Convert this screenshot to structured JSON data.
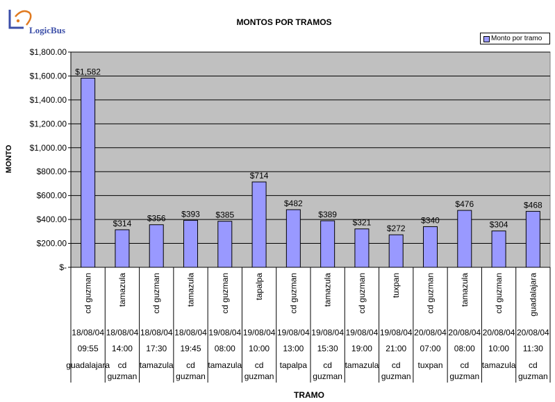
{
  "brand": {
    "name": "LogicBus"
  },
  "colors": {
    "bar": "#9999ff",
    "plot_bg": "#c0c0c0",
    "grid": "#000000",
    "logo": "#3b4ea8"
  },
  "chart_data": {
    "type": "bar",
    "title": "MONTOS POR TRAMOS",
    "xlabel": "TRAMO",
    "ylabel": "MONTO",
    "ylim": [
      0,
      1800
    ],
    "yticks": [
      0,
      200,
      400,
      600,
      800,
      1000,
      1200,
      1400,
      1600,
      1800
    ],
    "ytick_labels": [
      "$-",
      "$200.00",
      "$400.00",
      "$600.00",
      "$800.00",
      "$1,000.00",
      "$1,200.00",
      "$1,400.00",
      "$1,600.00",
      "$1,800.00"
    ],
    "grid": true,
    "legend": "top-right",
    "series": [
      {
        "name": "Monto por tramo",
        "values": [
          1582,
          314,
          356,
          393,
          385,
          714,
          482,
          389,
          321,
          272,
          340,
          476,
          304,
          468
        ],
        "data_labels": [
          "$1,582",
          "$314",
          "$356",
          "$393",
          "$385",
          "$714",
          "$482",
          "$389",
          "$321",
          "$272",
          "$340",
          "$476",
          "$304",
          "$468"
        ]
      }
    ],
    "categories": [
      {
        "origin": "cd guzman",
        "date": "18/08/04",
        "time": "09:55",
        "dest": [
          "guadalajara"
        ]
      },
      {
        "origin": "tamazula",
        "date": "18/08/04",
        "time": "14:00",
        "dest": [
          "cd",
          "guzman"
        ]
      },
      {
        "origin": "cd guzman",
        "date": "18/08/04",
        "time": "17:30",
        "dest": [
          "tamazula"
        ]
      },
      {
        "origin": "tamazula",
        "date": "18/08/04",
        "time": "19:45",
        "dest": [
          "cd",
          "guzman"
        ]
      },
      {
        "origin": "cd guzman",
        "date": "19/08/04",
        "time": "08:00",
        "dest": [
          "tamazula"
        ]
      },
      {
        "origin": "tapalpa",
        "date": "19/08/04",
        "time": "10:00",
        "dest": [
          "cd",
          "guzman"
        ]
      },
      {
        "origin": "cd guzman",
        "date": "19/08/04",
        "time": "13:00",
        "dest": [
          "tapalpa"
        ]
      },
      {
        "origin": "tamazula",
        "date": "19/08/04",
        "time": "15:30",
        "dest": [
          "cd",
          "guzman"
        ]
      },
      {
        "origin": "cd guzman",
        "date": "19/08/04",
        "time": "19:00",
        "dest": [
          "tamazula"
        ]
      },
      {
        "origin": "tuxpan",
        "date": "19/08/04",
        "time": "21:00",
        "dest": [
          "cd",
          "guzman"
        ]
      },
      {
        "origin": "cd guzman",
        "date": "20/08/04",
        "time": "07:00",
        "dest": [
          "tuxpan"
        ]
      },
      {
        "origin": "tamazula",
        "date": "20/08/04",
        "time": "08:00",
        "dest": [
          "cd",
          "guzman"
        ]
      },
      {
        "origin": "cd guzman",
        "date": "20/08/04",
        "time": "10:00",
        "dest": [
          "tamazula"
        ]
      },
      {
        "origin": "guadalajara",
        "date": "20/08/04",
        "time": "11:30",
        "dest": [
          "cd",
          "guzman"
        ]
      }
    ]
  }
}
